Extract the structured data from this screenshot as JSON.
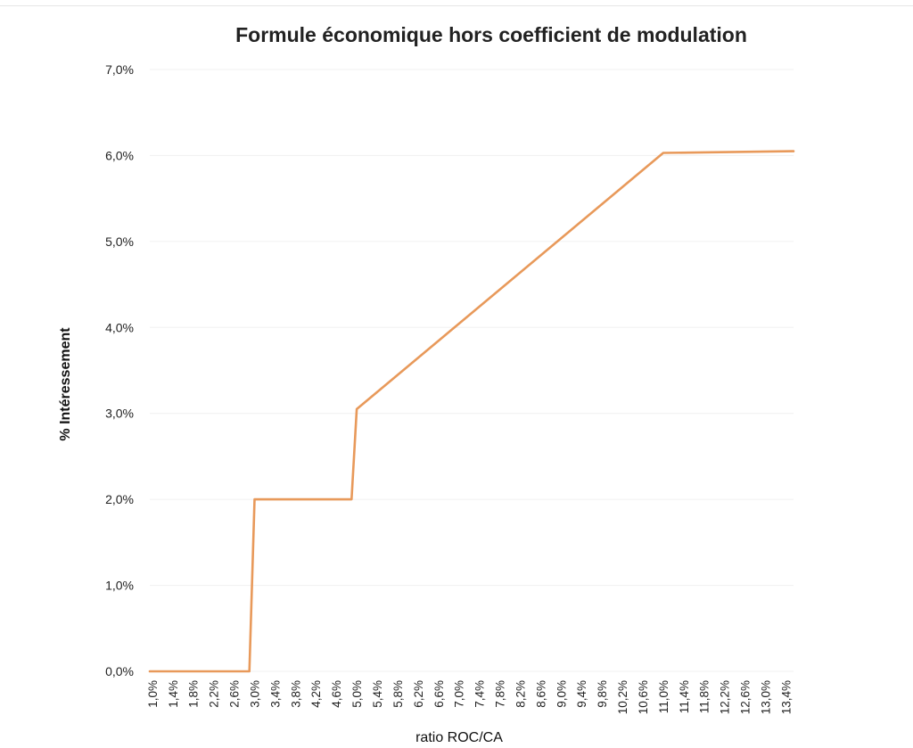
{
  "chart_data": {
    "type": "line",
    "title": "Formule économique hors coefficient de modulation",
    "xlabel": "ratio ROC/CA",
    "ylabel": "% Intéressement",
    "yticks": [
      "0,0%",
      "1,0%",
      "2,0%",
      "3,0%",
      "4,0%",
      "5,0%",
      "6,0%",
      "7,0%"
    ],
    "ylim": [
      0,
      7
    ],
    "grid": true,
    "legend": "none",
    "line_color": "#E8995A",
    "x_start": 1.0,
    "x_step": 0.1,
    "x_end": 13.5,
    "xtick_labels": [
      "1,0%",
      "1,4%",
      "1,8%",
      "2,2%",
      "2,6%",
      "3,0%",
      "3,4%",
      "3,8%",
      "4,2%",
      "4,6%",
      "5,0%",
      "5,4%",
      "5,8%",
      "6,2%",
      "6,6%",
      "7,0%",
      "7,4%",
      "7,8%",
      "8,2%",
      "8,6%",
      "9,0%",
      "9,4%",
      "9,8%",
      "10,2%",
      "10,6%",
      "11,0%",
      "11,4%",
      "11,8%",
      "12,2%",
      "12,6%",
      "13,0%",
      "13,4%"
    ],
    "series": [
      {
        "x": [
          1.0,
          2.9,
          3.0,
          4.9,
          5.0,
          11.0,
          13.5
        ],
        "values": [
          0.0,
          0.0,
          2.0,
          2.0,
          3.05,
          6.03,
          6.05
        ]
      }
    ]
  }
}
